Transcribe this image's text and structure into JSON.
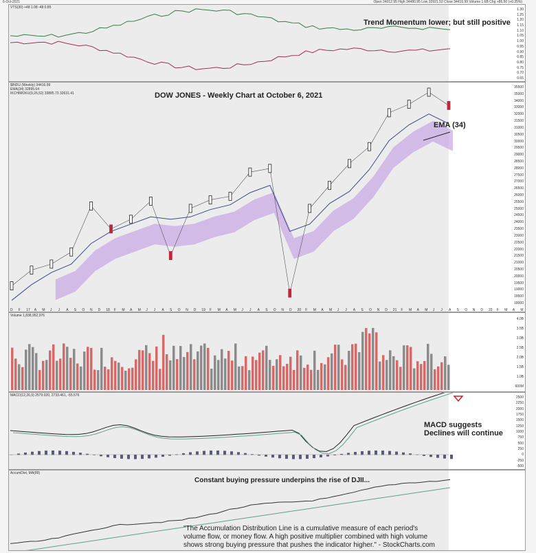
{
  "header": {
    "date": "6-Oct-2021",
    "quote": "Open 34012.95  High 34480.95  Low 33921.52  Close 34416.99  Volume 1.6B  Chg +86.50 (+0.25%)"
  },
  "colors": {
    "up": "#222222",
    "down": "#c0263a",
    "cloud": "#c9a6e6",
    "ema": "#3a4a8a",
    "vol_up": "#8c8c8c",
    "vol_down": "#d46a6a"
  },
  "panels": {
    "vts": {
      "legend": "VTS(30) +48 1.08 -48 0.85",
      "annotation": "Trend Momentum lower; but still positive",
      "yticks": [
        "1.30",
        "1.25",
        "1.20",
        "1.15",
        "1.10",
        "1.05",
        "1.00",
        "0.95",
        "0.90",
        "0.85",
        "0.80",
        "0.75",
        "0.70",
        "0.65"
      ]
    },
    "price": {
      "legend1": "$INDU (Weekly) 34416.99",
      "legend2": "EMA(34) 32895.64",
      "legend3": "IKCHIMOKU(9,26,52) 33885.73 32631.41",
      "title": "DOW JONES - Weekly Chart at October 6, 2021",
      "ema_label": "EMA (34)",
      "yticks": [
        "35500",
        "35000",
        "34000",
        "33000",
        "32000",
        "31500",
        "31000",
        "30500",
        "30000",
        "29500",
        "29000",
        "28500",
        "28000",
        "27500",
        "27000",
        "26500",
        "26000",
        "25500",
        "25000",
        "24500",
        "24000",
        "23500",
        "23000",
        "22500",
        "22000",
        "21500",
        "21000",
        "20500",
        "20000",
        "19500",
        "19000",
        "18500",
        "18000"
      ],
      "xticks": [
        "D",
        "F",
        "17",
        "A",
        "M",
        "J",
        "J",
        "A",
        "S",
        "O",
        "N",
        "D",
        "18",
        "F",
        "M",
        "A",
        "M",
        "J",
        "J",
        "A",
        "S",
        "O",
        "N",
        "D",
        "19",
        "F",
        "M",
        "A",
        "M",
        "J",
        "J",
        "A",
        "S",
        "O",
        "N",
        "D",
        "20",
        "F",
        "M",
        "A",
        "M",
        "J",
        "J",
        "A",
        "S",
        "O",
        "N",
        "D",
        "21",
        "F",
        "M",
        "A",
        "M",
        "J",
        "J",
        "A",
        "S",
        "O",
        "N",
        "D",
        "22",
        "F",
        "M",
        "A",
        "M"
      ]
    },
    "volume": {
      "legend": "Volume 1,838,952,976",
      "yticks": [
        "4.0B",
        "3.5B",
        "3.0B",
        "2.5B",
        "2.0B",
        "1.5B",
        "1.0B",
        "600M"
      ]
    },
    "macd": {
      "legend": "MACD(12,26,9) 2579.020, 2733.461, -55.576",
      "annotation_line1": "MACD suggests",
      "annotation_line2": "Declines will continue",
      "yticks": [
        "2500",
        "2250",
        "2000",
        "1750",
        "1500",
        "1250",
        "1000",
        "750",
        "500",
        "250",
        "0",
        "-250",
        "-500"
      ]
    },
    "accdist": {
      "legend": "AccumDist, MA(89)",
      "annotation": "Constant buying pressure underpins the rise of DJII...",
      "quote_line1": "\"The Accumulation Distribution Line is a cumulative measure of each period's",
      "quote_line2": "volume flow, or money flow. A high positive multiplier combined with high volume",
      "quote_line3": "shows strong buying pressure that pushes the indicator higher.\" -  StockCharts.com"
    }
  },
  "chart_data": {
    "type": "line",
    "title": "DOW JONES - Weekly Chart at October 6, 2021",
    "x": [
      "2016-12",
      "2017-03",
      "2017-06",
      "2017-09",
      "2018-01",
      "2018-04",
      "2018-07",
      "2018-10",
      "2018-12",
      "2019-03",
      "2019-06",
      "2019-09",
      "2020-01",
      "2020-02",
      "2020-03",
      "2020-06",
      "2020-09",
      "2020-11",
      "2021-01",
      "2021-04",
      "2021-06",
      "2021-08",
      "2021-10"
    ],
    "series": [
      {
        "name": "$INDU",
        "values": [
          19500,
          20800,
          21300,
          22300,
          26100,
          24200,
          25000,
          26500,
          22000,
          25900,
          26600,
          26900,
          28900,
          29200,
          18900,
          25900,
          27800,
          29600,
          31000,
          33800,
          34500,
          35500,
          34400
        ]
      },
      {
        "name": "EMA(34)",
        "values": [
          18300,
          19600,
          20600,
          21300,
          23000,
          24000,
          24600,
          25200,
          25000,
          25200,
          25800,
          26200,
          27200,
          27800,
          24000,
          24600,
          26300,
          27300,
          29100,
          31500,
          32800,
          33700,
          32900
        ]
      }
    ],
    "ylim": [
      18000,
      35500
    ]
  }
}
